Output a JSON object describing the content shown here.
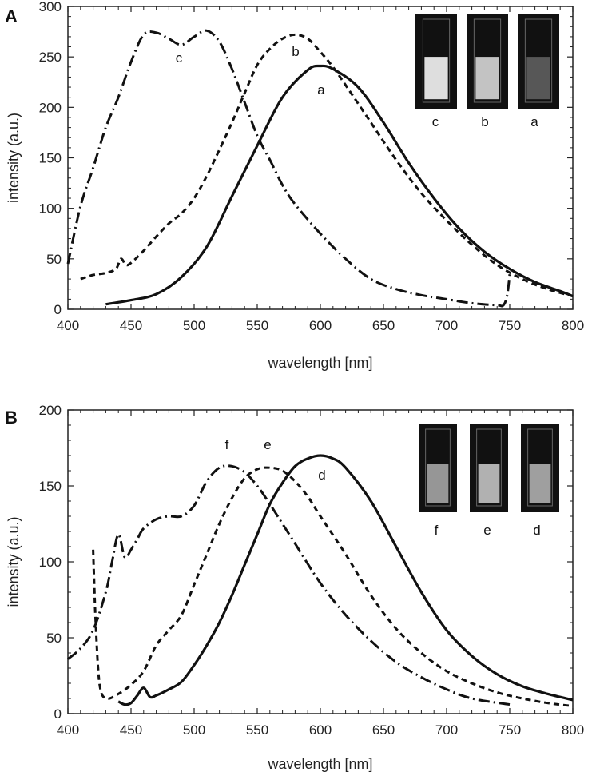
{
  "chart_data": [
    {
      "type": "line",
      "panel_label": "A",
      "xlabel": "wavelength [nm]",
      "ylabel": "intensity (a.u.)",
      "xlim": [
        400,
        800
      ],
      "ylim": [
        0,
        300
      ],
      "xticks": [
        400,
        450,
        500,
        550,
        600,
        650,
        700,
        750,
        800
      ],
      "yticks": [
        0,
        50,
        100,
        150,
        200,
        250,
        300
      ],
      "series": [
        {
          "name": "a",
          "style": "solid",
          "x": [
            430,
            450,
            470,
            490,
            510,
            530,
            550,
            570,
            590,
            600,
            610,
            630,
            650,
            670,
            690,
            710,
            730,
            750,
            770,
            790,
            800
          ],
          "y": [
            5,
            9,
            15,
            32,
            62,
            112,
            162,
            210,
            237,
            241,
            238,
            220,
            185,
            145,
            110,
            80,
            57,
            40,
            27,
            18,
            13
          ]
        },
        {
          "name": "b",
          "style": "dashed",
          "x": [
            410,
            420,
            430,
            438,
            442,
            446,
            450,
            460,
            470,
            480,
            490,
            500,
            510,
            520,
            530,
            540,
            550,
            560,
            570,
            580,
            590,
            600,
            610,
            620,
            640,
            660,
            680,
            700,
            720,
            740,
            760,
            780,
            800
          ],
          "y": [
            30,
            34,
            36,
            40,
            50,
            44,
            46,
            58,
            72,
            85,
            95,
            110,
            132,
            158,
            185,
            214,
            242,
            258,
            268,
            272,
            268,
            255,
            240,
            222,
            185,
            148,
            115,
            88,
            64,
            44,
            30,
            20,
            13
          ]
        },
        {
          "name": "c",
          "style": "dash-dot",
          "x": [
            400,
            410,
            420,
            430,
            440,
            450,
            460,
            470,
            480,
            490,
            500,
            510,
            520,
            530,
            540,
            550,
            560,
            570,
            580,
            600,
            620,
            640,
            660,
            680,
            700,
            720,
            740,
            745,
            748,
            750
          ],
          "y": [
            45,
            102,
            140,
            180,
            210,
            245,
            272,
            274,
            268,
            262,
            270,
            276,
            265,
            238,
            205,
            172,
            148,
            123,
            104,
            75,
            50,
            30,
            20,
            14,
            10,
            6,
            4,
            4,
            14,
            35
          ]
        }
      ],
      "inset": {
        "labels": [
          "c",
          "b",
          "a"
        ]
      }
    },
    {
      "type": "line",
      "panel_label": "B",
      "xlabel": "wavelength [nm]",
      "ylabel": "intensity (a.u.)",
      "xlim": [
        400,
        800
      ],
      "ylim": [
        0,
        200
      ],
      "xticks": [
        400,
        450,
        500,
        550,
        600,
        650,
        700,
        750,
        800
      ],
      "yticks": [
        0,
        50,
        100,
        150,
        200
      ],
      "series": [
        {
          "name": "d",
          "style": "solid",
          "x": [
            440,
            445,
            450,
            455,
            460,
            465,
            470,
            480,
            490,
            500,
            510,
            520,
            530,
            540,
            550,
            560,
            570,
            580,
            590,
            600,
            610,
            620,
            640,
            660,
            680,
            700,
            720,
            740,
            760,
            780,
            800
          ],
          "y": [
            8,
            6,
            7,
            12,
            17,
            11,
            12,
            16,
            21,
            32,
            45,
            60,
            78,
            98,
            118,
            138,
            152,
            163,
            168,
            170,
            168,
            162,
            140,
            110,
            80,
            55,
            38,
            26,
            18,
            13,
            9
          ]
        },
        {
          "name": "e",
          "style": "dashed",
          "x": [
            420,
            422,
            425,
            430,
            440,
            450,
            460,
            470,
            480,
            490,
            500,
            510,
            520,
            530,
            540,
            550,
            560,
            570,
            580,
            590,
            600,
            620,
            640,
            660,
            680,
            700,
            720,
            740,
            760,
            780,
            800
          ],
          "y": [
            108,
            60,
            20,
            10,
            13,
            19,
            28,
            45,
            55,
            65,
            85,
            105,
            125,
            142,
            155,
            161,
            162,
            160,
            153,
            143,
            130,
            105,
            78,
            56,
            40,
            28,
            20,
            14,
            10,
            7,
            5
          ]
        },
        {
          "name": "f",
          "style": "dash-dot",
          "x": [
            400,
            410,
            420,
            430,
            435,
            440,
            445,
            450,
            455,
            460,
            470,
            480,
            490,
            500,
            510,
            520,
            530,
            540,
            550,
            560,
            570,
            580,
            600,
            620,
            640,
            660,
            680,
            700,
            720,
            750
          ],
          "y": [
            36,
            43,
            55,
            80,
            100,
            118,
            103,
            108,
            115,
            122,
            128,
            130,
            130,
            137,
            153,
            162,
            163,
            159,
            150,
            138,
            125,
            112,
            86,
            65,
            48,
            34,
            24,
            16,
            10,
            6
          ]
        }
      ],
      "inset": {
        "labels": [
          "f",
          "e",
          "d"
        ]
      }
    }
  ]
}
